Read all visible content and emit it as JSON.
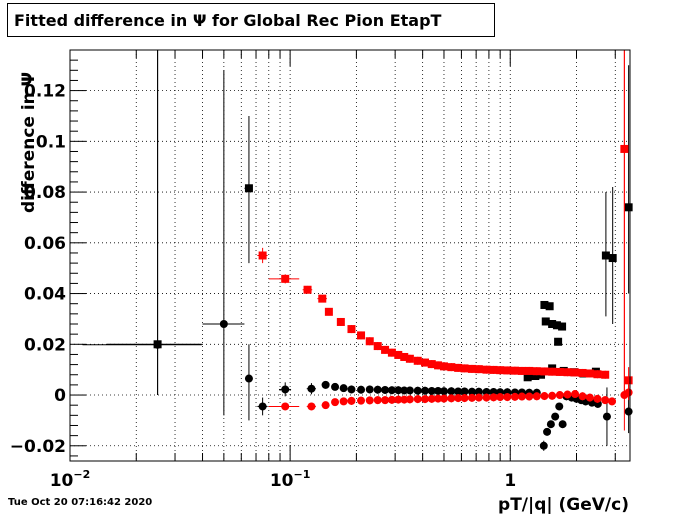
{
  "chart_data": {
    "type": "scatter",
    "title": "Fitted difference in  Ψ  for Global Rec Pion EtapT",
    "xlabel": "pT/|q| (GeV/c)",
    "ylabel": "difference in  Ψ",
    "xscale": "log",
    "xlim": [
      0.01,
      3.5
    ],
    "ylim": [
      -0.026,
      0.136
    ],
    "grid": true,
    "x_tick_labels": [
      {
        "value": 0.01,
        "base": "10",
        "exp": "−2"
      },
      {
        "value": 0.1,
        "base": "10",
        "exp": "−1"
      },
      {
        "value": 1,
        "base": "1",
        "exp": ""
      }
    ],
    "y_ticks": [
      {
        "value": -0.02,
        "label": "−0.02"
      },
      {
        "value": 0,
        "label": "0"
      },
      {
        "value": 0.02,
        "label": "0.02"
      },
      {
        "value": 0.04,
        "label": "0.04"
      },
      {
        "value": 0.06,
        "label": "0.06"
      },
      {
        "value": 0.08,
        "label": "0.08"
      },
      {
        "value": 0.1,
        "label": "0.1"
      },
      {
        "value": 0.12,
        "label": "0.12"
      }
    ],
    "series": [
      {
        "color": "#000000",
        "marker": "square",
        "points": [
          [
            0.025,
            0.02,
            0.0147,
            0.0397,
            0.0,
            0.136
          ],
          [
            0.065,
            0.0815,
            0.062,
            0.067,
            0.052,
            0.11
          ],
          [
            1.43,
            0.0355,
            1.4,
            1.46,
            0.034,
            0.037
          ],
          [
            1.51,
            0.035,
            1.48,
            1.54,
            0.0335,
            0.0365
          ],
          [
            1.45,
            0.029,
            1.42,
            1.48,
            0.0275,
            0.0305
          ],
          [
            1.55,
            0.028,
            1.52,
            1.58,
            0.0265,
            0.0295
          ],
          [
            1.63,
            0.0275,
            1.6,
            1.66,
            0.026,
            0.029
          ],
          [
            1.72,
            0.027,
            1.69,
            1.75,
            0.0255,
            0.0285
          ],
          [
            1.65,
            0.021,
            1.62,
            1.68,
            0.0195,
            0.0225
          ],
          [
            1.55,
            0.0105,
            1.52,
            1.58,
            0.0095,
            0.0115
          ],
          [
            1.75,
            0.0095,
            1.72,
            1.78,
            0.0085,
            0.0105
          ],
          [
            1.95,
            0.009,
            1.9,
            2.0,
            0.008,
            0.01
          ],
          [
            2.15,
            0.0085,
            2.1,
            2.2,
            0.0075,
            0.0095
          ],
          [
            2.45,
            0.0092,
            2.38,
            2.52,
            0.0082,
            0.0102
          ],
          [
            2.72,
            0.055,
            2.66,
            2.78,
            0.031,
            0.08
          ],
          [
            2.92,
            0.054,
            2.85,
            2.99,
            0.028,
            0.082
          ],
          [
            3.45,
            0.074,
            3.38,
            3.5,
            0.04,
            0.13
          ],
          [
            1.2,
            0.007,
            1.17,
            1.23,
            0.0062,
            0.0078
          ],
          [
            1.3,
            0.0075,
            1.27,
            1.33,
            0.0067,
            0.0083
          ],
          [
            1.38,
            0.008,
            1.35,
            1.41,
            0.0072,
            0.0088
          ]
        ]
      },
      {
        "color": "#000000",
        "marker": "circle",
        "points": [
          [
            0.025,
            0.0198,
            0.0114,
            0.0397,
            0.0,
            0.136
          ],
          [
            0.05,
            0.028,
            0.04,
            0.062,
            -0.008,
            0.128
          ],
          [
            0.065,
            0.0065,
            0.063,
            0.067,
            -0.01,
            0.02
          ],
          [
            0.075,
            -0.0045,
            0.071,
            0.079,
            -0.008,
            -0.001
          ],
          [
            0.095,
            0.0022,
            0.089,
            0.101,
            -0.0005,
            0.005
          ],
          [
            0.125,
            0.0025,
            0.119,
            0.131,
            0.0003,
            0.0047
          ],
          [
            0.145,
            0.004,
            0.139,
            0.151,
            0.0025,
            0.0055
          ],
          [
            0.16,
            0.0032,
            0.155,
            0.165,
            0.002,
            0.0044
          ],
          [
            0.175,
            0.0027,
            0.17,
            0.18,
            0.0017,
            0.0037
          ],
          [
            1.42,
            -0.02,
            1.4,
            1.44,
            -0.022,
            -0.018
          ],
          [
            1.47,
            -0.0145,
            1.45,
            1.49,
            -0.016,
            -0.013
          ],
          [
            1.53,
            -0.0115,
            1.51,
            1.55,
            -0.013,
            -0.01
          ],
          [
            1.6,
            -0.0085,
            1.58,
            1.62,
            -0.01,
            -0.007
          ],
          [
            1.67,
            -0.0045,
            1.65,
            1.69,
            -0.0058,
            -0.0032
          ],
          [
            1.73,
            -0.0115,
            1.71,
            1.75,
            -0.013,
            -0.01
          ],
          [
            2.75,
            -0.0085,
            2.7,
            2.8,
            -0.02,
            0.003
          ],
          [
            3.45,
            -0.0065,
            3.38,
            3.5,
            -0.015,
            0.002
          ]
        ]
      },
      {
        "color": "#ff0000",
        "marker": "square",
        "points": [
          [
            0.075,
            0.055,
            0.071,
            0.079,
            0.052,
            0.058
          ],
          [
            0.095,
            0.0458,
            0.08,
            0.11,
            0.044,
            0.0476
          ],
          [
            0.12,
            0.0415,
            0.114,
            0.126,
            0.04,
            0.043
          ],
          [
            0.14,
            0.038,
            0.133,
            0.147,
            0.0368,
            0.0392
          ],
          [
            0.15,
            0.0328,
            0.145,
            0.155,
            0.0318,
            0.0338
          ],
          [
            3.3,
            0.097,
            3.22,
            3.38,
            0.0,
            0.136
          ],
          [
            3.45,
            0.0058,
            3.38,
            3.5,
            0.001,
            0.011
          ]
        ]
      },
      {
        "color": "#ff0000",
        "marker": "circle",
        "points": [
          [
            0.095,
            -0.0045,
            0.08,
            0.11,
            -0.0055,
            -0.0035
          ],
          [
            0.125,
            -0.0045,
            0.119,
            0.131,
            -0.0055,
            -0.0035
          ],
          [
            0.145,
            -0.004,
            0.139,
            0.151,
            -0.005,
            -0.003
          ],
          [
            0.16,
            -0.0028,
            0.155,
            0.165,
            -0.0038,
            -0.0018
          ],
          [
            0.175,
            -0.0025,
            0.17,
            0.18,
            -0.0035,
            -0.0015
          ],
          [
            3.3,
            0.0,
            3.22,
            3.38,
            -0.014,
            0.136
          ],
          [
            3.45,
            0.001,
            3.38,
            3.5,
            -0.002,
            0.004
          ]
        ]
      }
    ],
    "bands": [
      {
        "color": "#ff0000",
        "marker": "square",
        "x": [
          0.17,
          0.19,
          0.21,
          0.23,
          0.25,
          0.27,
          0.29,
          0.31,
          0.33,
          0.35,
          0.38,
          0.41,
          0.44,
          0.47,
          0.5,
          0.54,
          0.58,
          0.62,
          0.67,
          0.72,
          0.78,
          0.84,
          0.9,
          0.97,
          1.05,
          1.13,
          1.22,
          1.32,
          1.43,
          1.55,
          1.68,
          1.82,
          1.97,
          2.13,
          2.3,
          2.49,
          2.7
        ],
        "y": [
          0.0288,
          0.026,
          0.0235,
          0.0212,
          0.0193,
          0.0178,
          0.0167,
          0.0158,
          0.015,
          0.0143,
          0.0135,
          0.0128,
          0.0122,
          0.0117,
          0.0113,
          0.011,
          0.0107,
          0.0105,
          0.0103,
          0.0102,
          0.01,
          0.0099,
          0.0098,
          0.0097,
          0.0096,
          0.0095,
          0.0095,
          0.0094,
          0.0093,
          0.0092,
          0.0091,
          0.009,
          0.0089,
          0.0087,
          0.0085,
          0.0082,
          0.008
        ]
      },
      {
        "color": "#000000",
        "marker": "circle",
        "x": [
          0.19,
          0.21,
          0.23,
          0.25,
          0.27,
          0.29,
          0.31,
          0.33,
          0.35,
          0.38,
          0.41,
          0.44,
          0.47,
          0.5,
          0.54,
          0.58,
          0.62,
          0.67,
          0.72,
          0.78,
          0.84,
          0.9,
          0.97,
          1.05,
          1.13,
          1.22,
          1.32,
          1.8,
          1.9,
          2.0,
          2.1,
          2.2,
          2.35,
          2.5
        ],
        "y": [
          0.0022,
          0.0021,
          0.0022,
          0.0021,
          0.002,
          0.0019,
          0.0019,
          0.0018,
          0.0018,
          0.0017,
          0.0017,
          0.0016,
          0.0016,
          0.0015,
          0.0015,
          0.0014,
          0.0014,
          0.0013,
          0.0013,
          0.0012,
          0.0012,
          0.0011,
          0.0011,
          0.001,
          0.001,
          0.0009,
          0.0009,
          -0.0005,
          -0.001,
          -0.0015,
          -0.002,
          -0.0025,
          -0.003,
          -0.0035
        ]
      },
      {
        "color": "#ff0000",
        "marker": "circle",
        "x": [
          0.19,
          0.21,
          0.23,
          0.25,
          0.27,
          0.29,
          0.31,
          0.33,
          0.35,
          0.38,
          0.41,
          0.44,
          0.47,
          0.5,
          0.54,
          0.58,
          0.62,
          0.67,
          0.72,
          0.78,
          0.84,
          0.9,
          0.97,
          1.05,
          1.13,
          1.22,
          1.32,
          1.43,
          1.55,
          1.68,
          1.82,
          1.97,
          2.13,
          2.3,
          2.49,
          2.7,
          2.9
        ],
        "y": [
          -0.0023,
          -0.0022,
          -0.0021,
          -0.002,
          -0.002,
          -0.0019,
          -0.0018,
          -0.0018,
          -0.0017,
          -0.0016,
          -0.0016,
          -0.0015,
          -0.0014,
          -0.0014,
          -0.0013,
          -0.0012,
          -0.0012,
          -0.0011,
          -0.001,
          -0.001,
          -0.0009,
          -0.0008,
          -0.0008,
          -0.0007,
          -0.0006,
          -0.0006,
          -0.0005,
          -0.0004,
          -0.0003,
          0.0,
          0.0002,
          0.0004,
          -0.0005,
          -0.001,
          -0.0015,
          -0.002,
          -0.0025
        ]
      }
    ]
  },
  "datestamp": "Tue Oct 20 07:16:42 2020"
}
